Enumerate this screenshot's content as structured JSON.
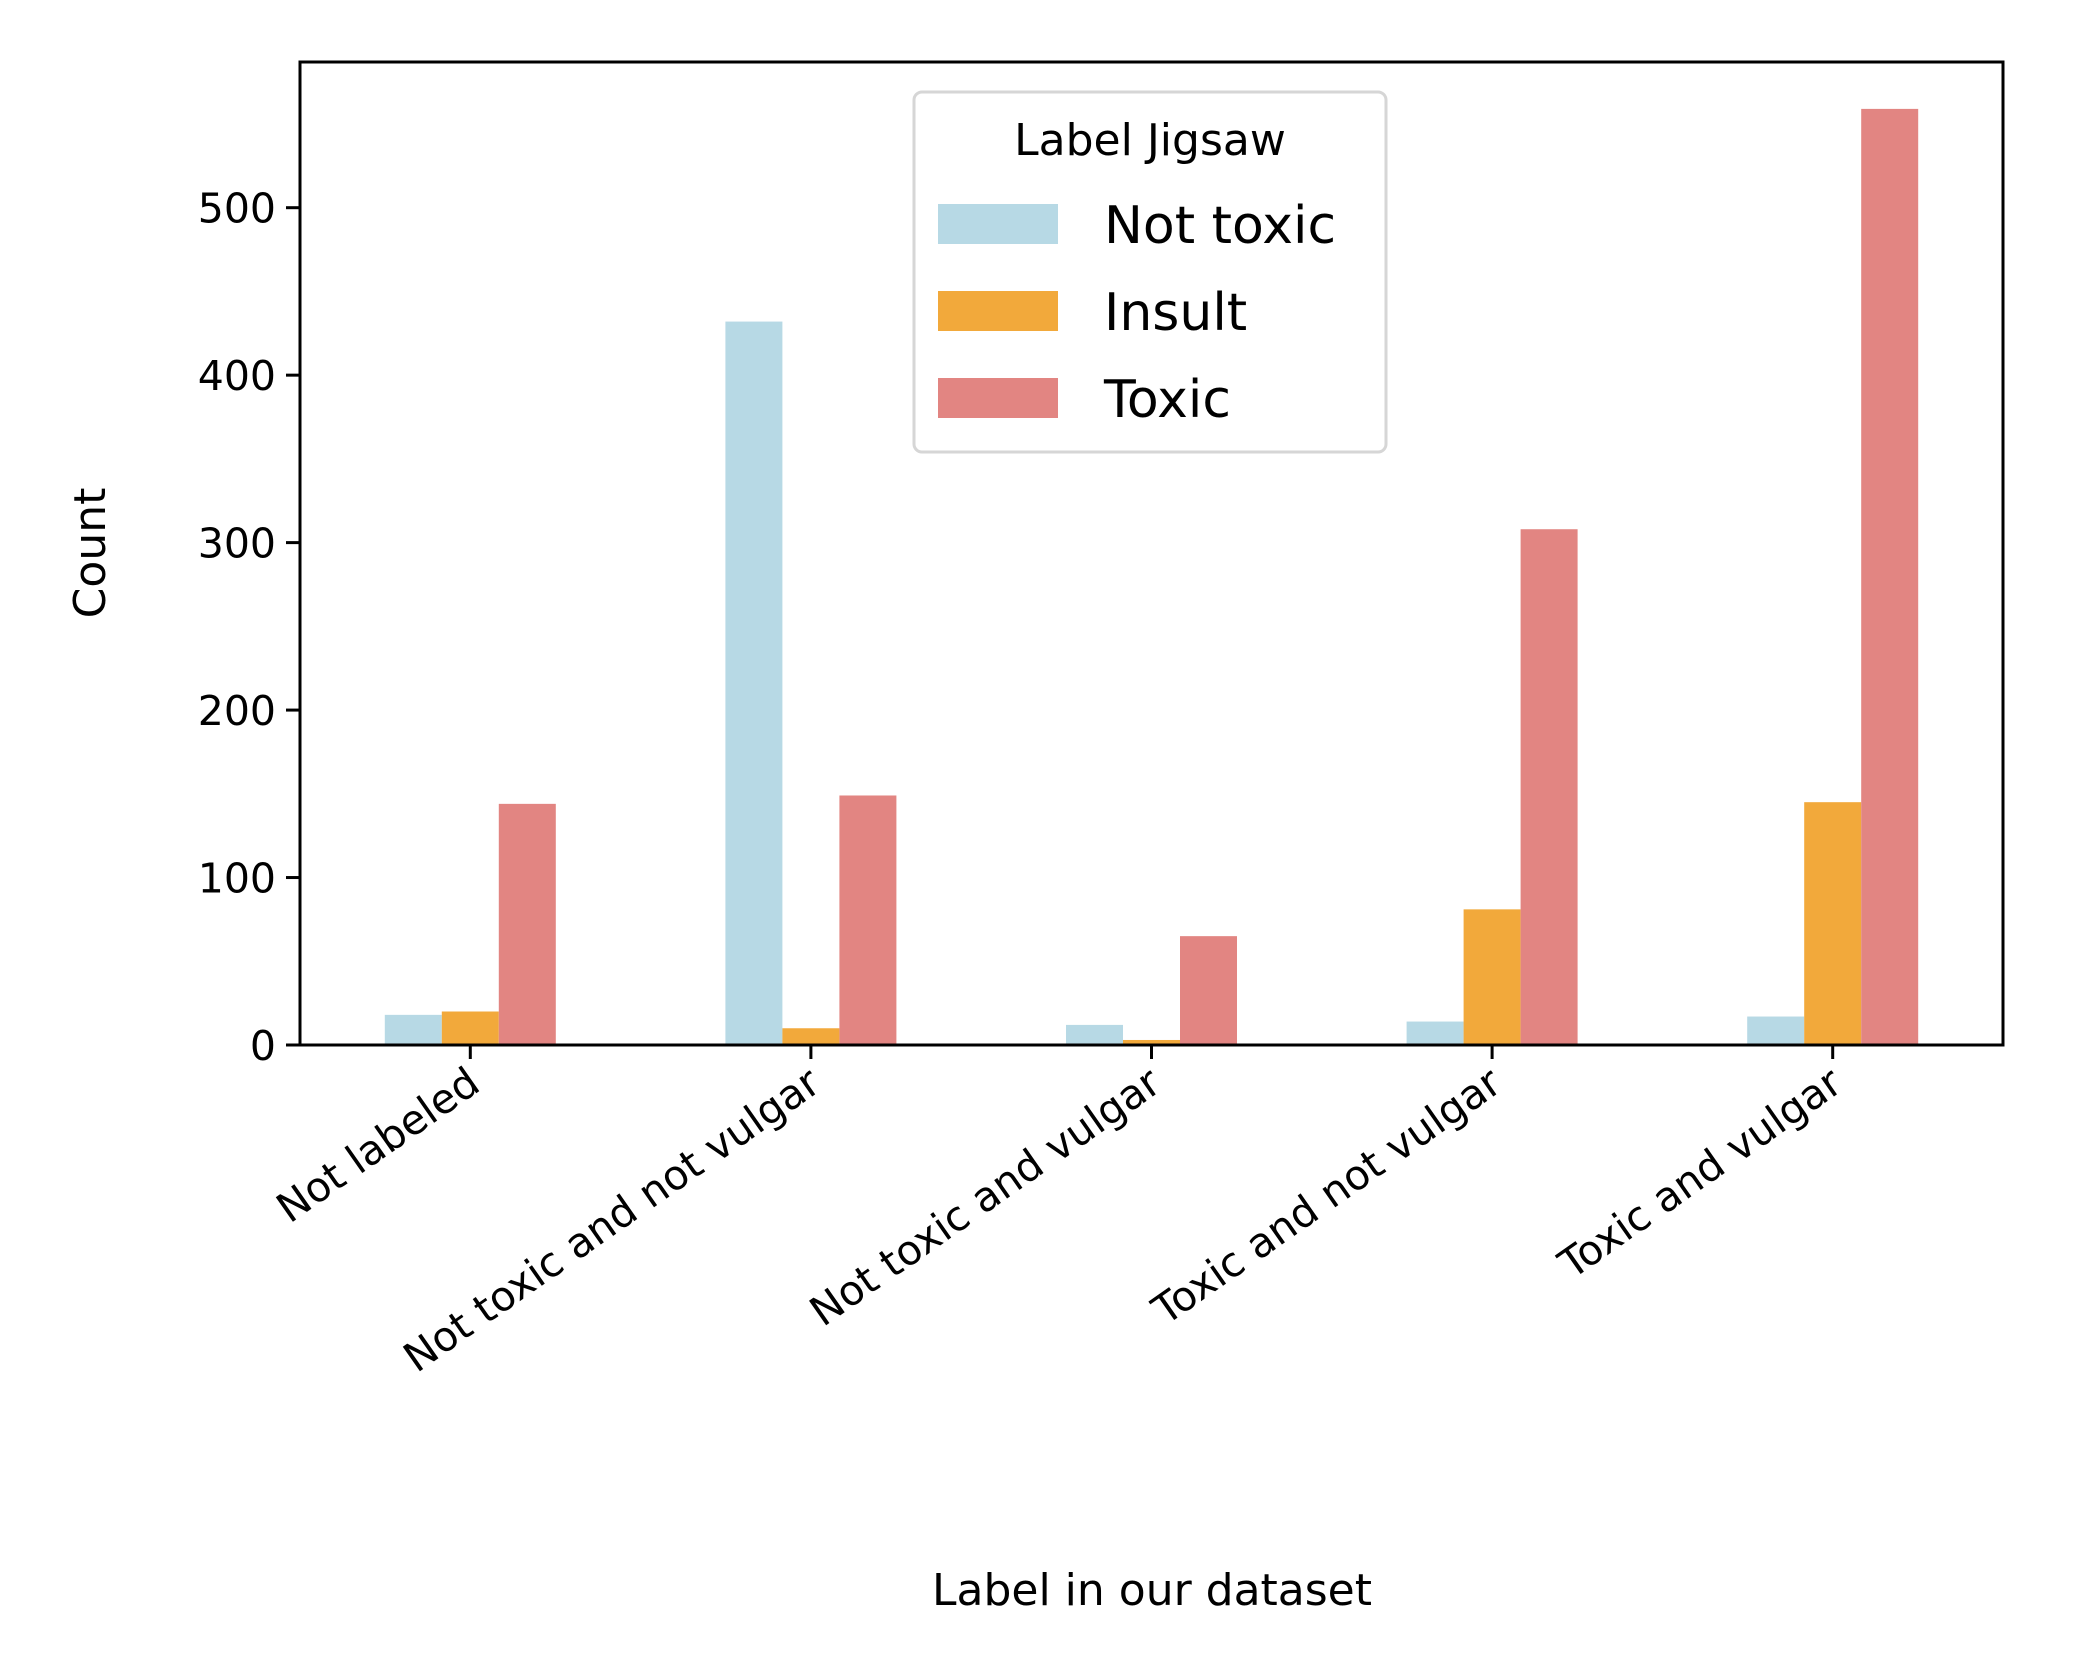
{
  "chart_data": {
    "type": "bar",
    "title": "",
    "xlabel": "Label in our dataset",
    "ylabel": "Count",
    "categories": [
      "Not labeled",
      "Not toxic and not vulgar",
      "Not toxic and vulgar",
      "Toxic and not vulgar",
      "Toxic and vulgar"
    ],
    "series": [
      {
        "name": "Not toxic",
        "color": "#b7d9e5",
        "values": [
          18,
          432,
          12,
          14,
          17
        ]
      },
      {
        "name": "Insult",
        "color": "#f2a93b",
        "values": [
          20,
          10,
          3,
          81,
          145
        ]
      },
      {
        "name": "Toxic",
        "color": "#e28582",
        "values": [
          144,
          149,
          65,
          308,
          559
        ]
      }
    ],
    "ylim": [
      0,
      587
    ],
    "yticks": [
      0,
      100,
      200,
      300,
      400,
      500
    ],
    "legend": {
      "title": "Label Jigsaw",
      "position": "top-center"
    },
    "grid": false
  }
}
